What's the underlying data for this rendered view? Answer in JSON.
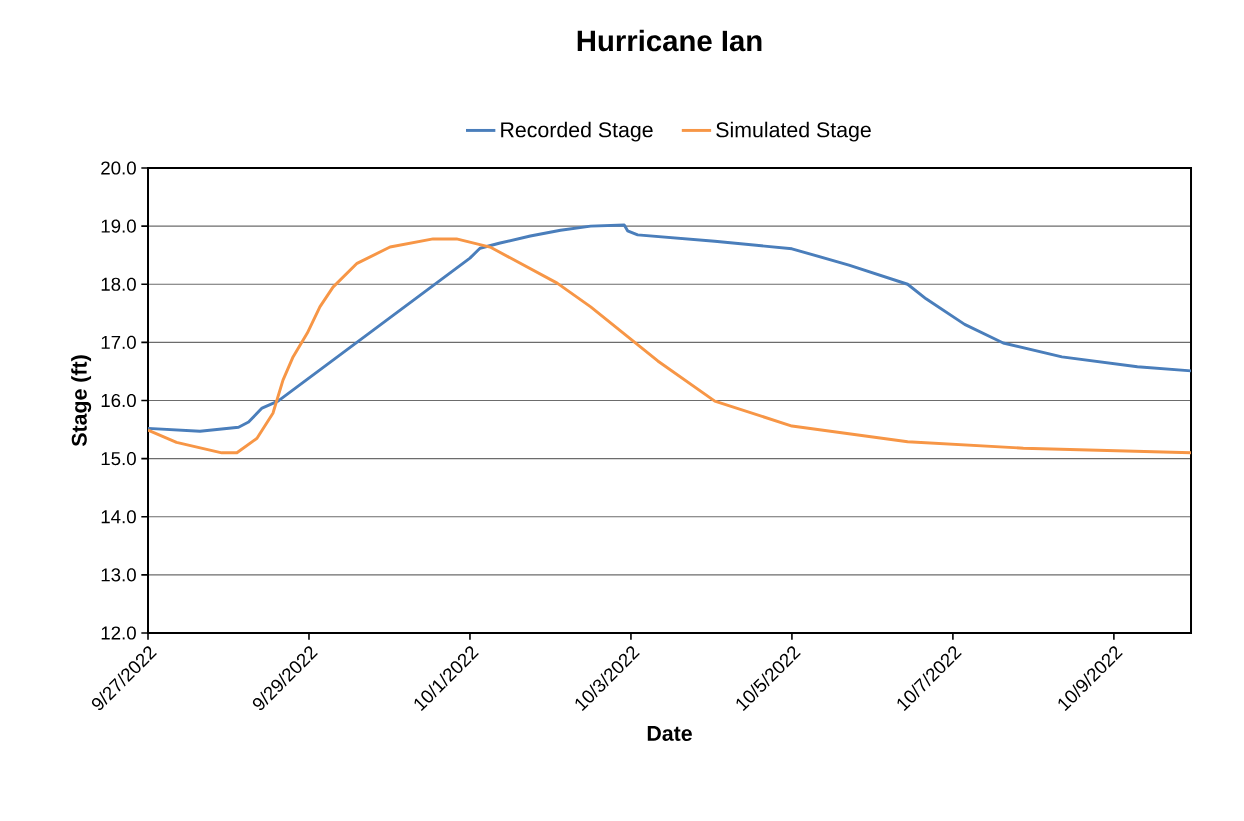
{
  "chart_data": {
    "type": "line",
    "title": "Hurricane Ian",
    "xlabel": "Date",
    "ylabel": "Stage (ft)",
    "xlim": [
      "2022-09-27",
      "2022-10-09T23:00"
    ],
    "xticks": [
      {
        "value": "2022-09-27",
        "label": "9/27/2022"
      },
      {
        "value": "2022-09-29",
        "label": "9/29/2022"
      },
      {
        "value": "2022-10-01",
        "label": "10/1/2022"
      },
      {
        "value": "2022-10-03",
        "label": "10/3/2022"
      },
      {
        "value": "2022-10-05",
        "label": "10/5/2022"
      },
      {
        "value": "2022-10-07",
        "label": "10/7/2022"
      },
      {
        "value": "2022-10-09",
        "label": "10/9/2022"
      }
    ],
    "ylim": [
      12,
      20
    ],
    "yticks": [
      {
        "value": 12,
        "label": "12.0"
      },
      {
        "value": 13,
        "label": "13.0"
      },
      {
        "value": 14,
        "label": "14.0"
      },
      {
        "value": 15,
        "label": "15.0"
      },
      {
        "value": 16,
        "label": "16.0"
      },
      {
        "value": 17,
        "label": "17.0"
      },
      {
        "value": 18,
        "label": "18.0"
      },
      {
        "value": 19,
        "label": "19.0"
      },
      {
        "value": 20,
        "label": "20.0"
      }
    ],
    "grid": "y",
    "legend": "top",
    "marker": "none",
    "line_style": "solid",
    "series": [
      {
        "name": "Recorded Stage",
        "color": "#4a7ebb",
        "x": [
          "2022-09-27T00:00",
          "2022-09-27T15:30",
          "2022-09-28T03:00",
          "2022-09-28T06:00",
          "2022-09-28T10:00",
          "2022-09-28T14:45",
          "2022-10-01T00:00",
          "2022-10-01T03:00",
          "2022-10-01T09:00",
          "2022-10-01T18:00",
          "2022-10-02T03:00",
          "2022-10-02T12:00",
          "2022-10-02T22:00",
          "2022-10-02T23:00",
          "2022-10-03T02:00",
          "2022-10-04T01:00",
          "2022-10-05T00:00",
          "2022-10-05T17:00",
          "2022-10-06T10:30",
          "2022-10-06T16:00",
          "2022-10-07T03:30",
          "2022-10-07T15:00",
          "2022-10-08T08:30",
          "2022-10-09T07:00",
          "2022-10-09T23:00"
        ],
        "values": [
          15.52,
          15.47,
          15.54,
          15.63,
          15.87,
          15.99,
          18.45,
          18.62,
          18.71,
          18.83,
          18.93,
          19.0,
          19.02,
          18.92,
          18.85,
          18.74,
          18.61,
          18.33,
          18.0,
          17.75,
          17.31,
          16.99,
          16.75,
          16.58,
          16.51
        ]
      },
      {
        "name": "Simulated Stage",
        "color": "#f79646",
        "x": [
          "2022-09-27T00:00",
          "2022-09-27T08:30",
          "2022-09-27T22:00",
          "2022-09-28T02:30",
          "2022-09-28T08:30",
          "2022-09-28T13:15",
          "2022-09-28T16:15",
          "2022-09-28T19:15",
          "2022-09-28T23:30",
          "2022-09-29T03:15",
          "2022-09-29T07:10",
          "2022-09-29T14:20",
          "2022-09-30T00:10",
          "2022-09-30T13:00",
          "2022-09-30T20:00",
          "2022-10-01T06:00",
          "2022-10-02T02:00",
          "2022-10-02T12:00",
          "2022-10-03T08:00",
          "2022-10-04T01:00",
          "2022-10-05T00:00",
          "2022-10-06T10:30",
          "2022-10-07T21:00",
          "2022-10-09T23:00"
        ],
        "values": [
          15.49,
          15.28,
          15.1,
          15.1,
          15.35,
          15.78,
          16.35,
          16.75,
          17.16,
          17.61,
          17.95,
          18.36,
          18.64,
          18.78,
          18.78,
          18.64,
          18.02,
          17.61,
          16.68,
          15.99,
          15.56,
          15.29,
          15.18,
          15.1
        ]
      }
    ]
  }
}
